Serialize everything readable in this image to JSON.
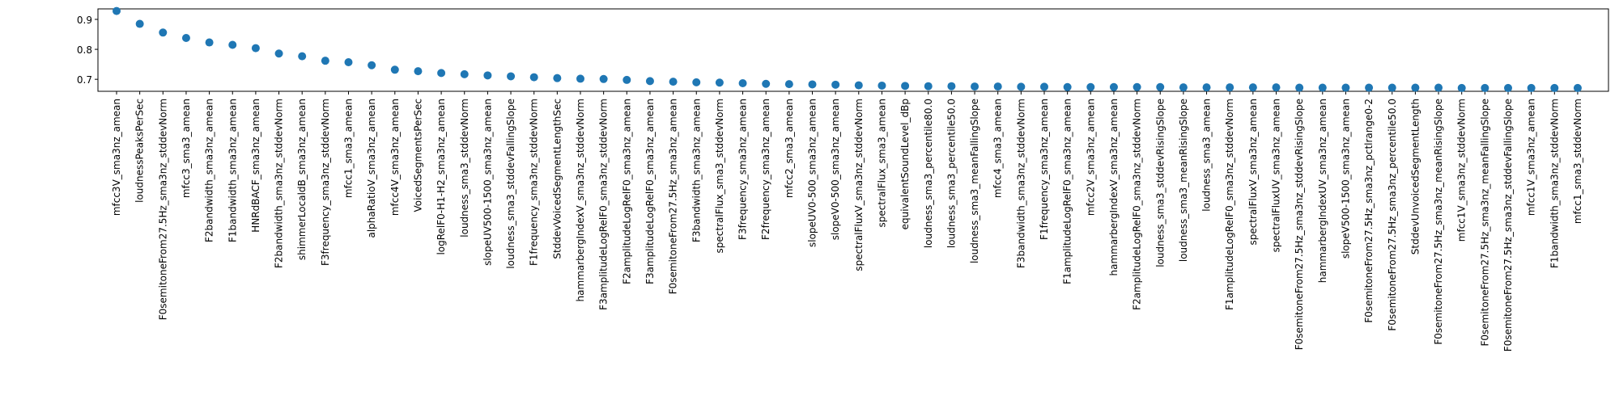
{
  "chart_data": {
    "type": "scatter",
    "title": "",
    "xlabel": "",
    "ylabel": "",
    "ylim": [
      0.66,
      0.935
    ],
    "yticks": [
      0.7,
      0.8,
      0.9
    ],
    "ytick_labels": [
      "0.7",
      "0.8",
      "0.9"
    ],
    "grid": false,
    "marker_color": "#1f77b4",
    "categories": [
      "mfcc3V_sma3nz_amean",
      "loudnessPeaksPerSec",
      "F0semitoneFrom27.5Hz_sma3nz_stddevNorm",
      "mfcc3_sma3_amean",
      "F2bandwidth_sma3nz_amean",
      "F1bandwidth_sma3nz_amean",
      "HNRdBACF_sma3nz_amean",
      "F2bandwidth_sma3nz_stddevNorm",
      "shimmerLocaldB_sma3nz_amean",
      "F3frequency_sma3nz_stddevNorm",
      "mfcc1_sma3_amean",
      "alphaRatioV_sma3nz_amean",
      "mfcc4V_sma3nz_amean",
      "VoicedSegmentsPerSec",
      "logRelF0-H1-H2_sma3nz_amean",
      "loudness_sma3_stddevNorm",
      "slopeUV500-1500_sma3nz_amean",
      "loudness_sma3_stddevFallingSlope",
      "F1frequency_sma3nz_stddevNorm",
      "StddevVoicedSegmentLengthSec",
      "hammarbergIndexV_sma3nz_stddevNorm",
      "F3amplitudeLogRelF0_sma3nz_stddevNorm",
      "F2amplitudeLogRelF0_sma3nz_amean",
      "F3amplitudeLogRelF0_sma3nz_amean",
      "F0semitoneFrom27.5Hz_sma3nz_amean",
      "F3bandwidth_sma3nz_amean",
      "spectralFlux_sma3_stddevNorm",
      "F3frequency_sma3nz_amean",
      "F2frequency_sma3nz_amean",
      "mfcc2_sma3_amean",
      "slopeUV0-500_sma3nz_amean",
      "slopeV0-500_sma3nz_amean",
      "spectralFluxV_sma3nz_stddevNorm",
      "spectralFlux_sma3_amean",
      "equivalentSoundLevel_dBp",
      "loudness_sma3_percentile80.0",
      "loudness_sma3_percentile50.0",
      "loudness_sma3_meanFallingSlope",
      "mfcc4_sma3_amean",
      "F3bandwidth_sma3nz_stddevNorm",
      "F1frequency_sma3nz_amean",
      "F1amplitudeLogRelF0_sma3nz_amean",
      "mfcc2V_sma3nz_amean",
      "hammarbergIndexV_sma3nz_amean",
      "F2amplitudeLogRelF0_sma3nz_stddevNorm",
      "loudness_sma3_stddevRisingSlope",
      "loudness_sma3_meanRisingSlope",
      "loudness_sma3_amean",
      "F1amplitudeLogRelF0_sma3nz_stddevNorm",
      "spectralFluxV_sma3nz_amean",
      "spectralFluxUV_sma3nz_amean",
      "F0semitoneFrom27.5Hz_sma3nz_stddevRisingSlope",
      "hammarbergIndexUV_sma3nz_amean",
      "slopeV500-1500_sma3nz_amean",
      "F0semitoneFrom27.5Hz_sma3nz_pctlrange0-2",
      "F0semitoneFrom27.5Hz_sma3nz_percentile50.0",
      "StddevUnvoicedSegmentLength",
      "F0semitoneFrom27.5Hz_sma3nz_meanRisingSlope",
      "mfcc1V_sma3nz_stddevNorm",
      "F0semitoneFrom27.5Hz_sma3nz_meanFallingSlope",
      "F0semitoneFrom27.5Hz_sma3nz_stddevFallingSlope",
      "mfcc1V_sma3nz_amean",
      "F1bandwidth_sma3nz_stddevNorm",
      "mfcc1_sma3_stddevNorm"
    ],
    "values": [
      0.928,
      0.885,
      0.856,
      0.838,
      0.823,
      0.815,
      0.804,
      0.786,
      0.777,
      0.762,
      0.757,
      0.747,
      0.732,
      0.727,
      0.721,
      0.717,
      0.713,
      0.71,
      0.707,
      0.704,
      0.702,
      0.701,
      0.698,
      0.694,
      0.692,
      0.69,
      0.689,
      0.687,
      0.685,
      0.684,
      0.683,
      0.682,
      0.68,
      0.679,
      0.678,
      0.677,
      0.677,
      0.676,
      0.676,
      0.675,
      0.675,
      0.674,
      0.674,
      0.674,
      0.674,
      0.674,
      0.673,
      0.673,
      0.673,
      0.673,
      0.673,
      0.672,
      0.672,
      0.672,
      0.672,
      0.672,
      0.672,
      0.672,
      0.671,
      0.671,
      0.671,
      0.671,
      0.671,
      0.671
    ]
  }
}
